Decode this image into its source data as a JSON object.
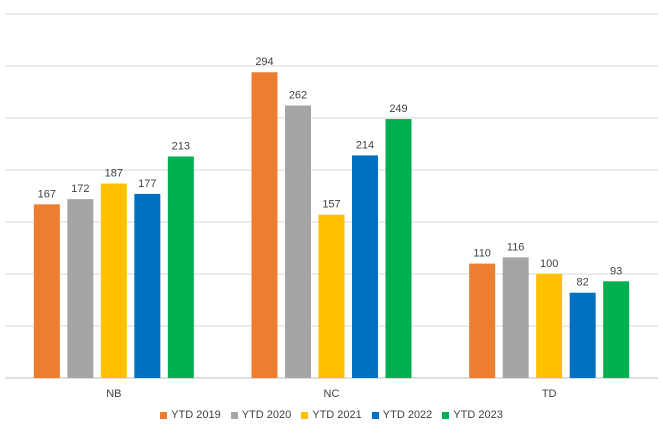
{
  "chart_data": {
    "type": "bar",
    "categories": [
      "NB",
      "NC",
      "TD"
    ],
    "series": [
      {
        "name": "YTD 2019",
        "color": "#ED7D31",
        "values": [
          167,
          294,
          110
        ]
      },
      {
        "name": "YTD 2020",
        "color": "#A5A5A5",
        "values": [
          172,
          262,
          116
        ]
      },
      {
        "name": "YTD 2021",
        "color": "#FFC000",
        "values": [
          187,
          157,
          100
        ]
      },
      {
        "name": "YTD 2022",
        "color": "#0070C0",
        "values": [
          177,
          214,
          82
        ]
      },
      {
        "name": "YTD 2023",
        "color": "#00B050",
        "values": [
          213,
          249,
          93
        ]
      }
    ],
    "title": "",
    "xlabel": "",
    "ylabel": "",
    "ylim": [
      0,
      350
    ],
    "gridlines": true,
    "legend_position": "bottom"
  }
}
